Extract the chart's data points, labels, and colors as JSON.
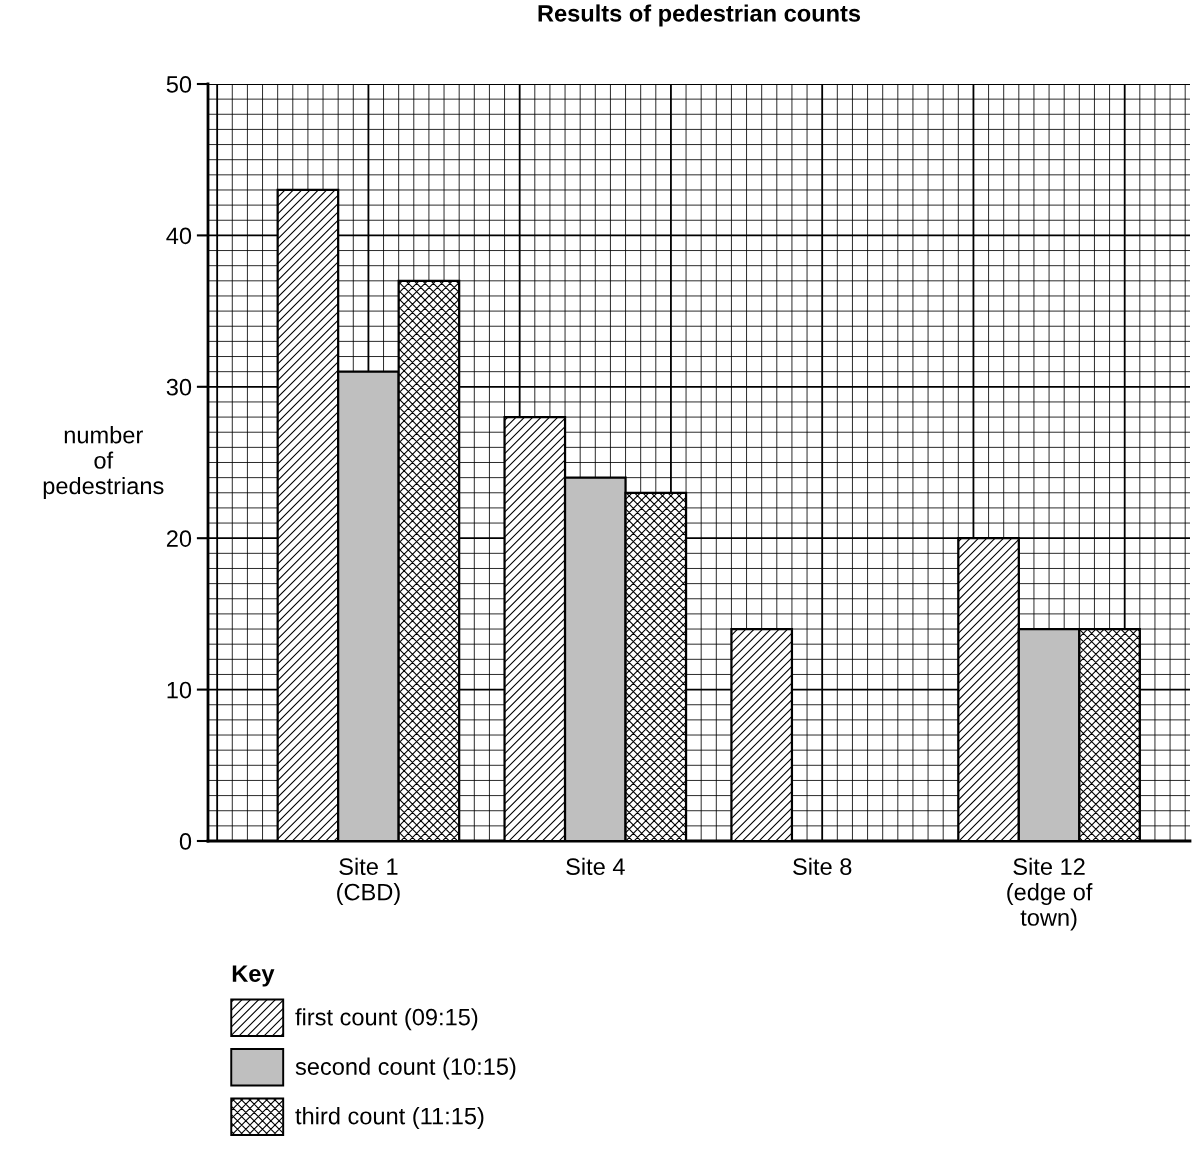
{
  "chart_data": {
    "type": "bar",
    "title": "Results of pedestrian counts",
    "categories": [
      "Site 1\n(CBD)",
      "Site 4",
      "Site 8",
      "Site 12\n(edge of\ntown)"
    ],
    "ylabel": "number\nof\npedestrians",
    "series": [
      {
        "name": "first count (09:15)",
        "color": "#000000",
        "values": [
          43,
          28,
          14,
          20
        ]
      },
      {
        "name": "second count (10:15)",
        "color": "#bfbfbf",
        "values": [
          31,
          24,
          null,
          14
        ]
      },
      {
        "name": "third count (11:15)",
        "color": "#000000",
        "values": [
          37,
          23,
          null,
          14
        ]
      }
    ],
    "legend_title": "Key",
    "legend": "bottom left",
    "ylim": [
      0,
      50
    ],
    "yticks": [
      0,
      10,
      20,
      30,
      40,
      50
    ],
    "grid": true
  }
}
